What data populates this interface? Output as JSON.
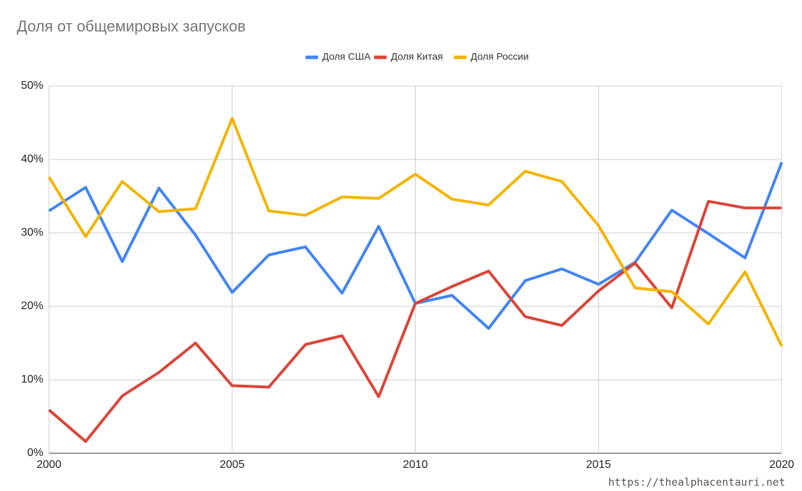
{
  "chart_data": {
    "type": "line",
    "title": "Доля от общемировых запусков",
    "x": [
      2000,
      2001,
      2002,
      2003,
      2004,
      2005,
      2006,
      2007,
      2008,
      2009,
      2010,
      2011,
      2012,
      2013,
      2014,
      2015,
      2016,
      2017,
      2018,
      2019,
      2020
    ],
    "series": [
      {
        "name": "Доля США",
        "color": "#4285f4",
        "values": [
          33.0,
          36.2,
          26.1,
          36.1,
          29.7,
          21.9,
          27.0,
          28.1,
          21.8,
          30.9,
          20.4,
          21.5,
          17.0,
          23.5,
          25.1,
          23.0,
          26.0,
          33.1,
          29.9,
          26.6,
          39.6
        ]
      },
      {
        "name": "Доля Китая",
        "color": "#db4437",
        "values": [
          5.9,
          1.6,
          7.8,
          11.0,
          15.0,
          9.2,
          9.0,
          14.8,
          16.0,
          7.7,
          20.4,
          22.7,
          24.8,
          18.6,
          17.4,
          22.1,
          25.9,
          19.8,
          34.3,
          33.4,
          33.4
        ]
      },
      {
        "name": "Доля России",
        "color": "#f4b400",
        "values": [
          37.6,
          29.5,
          37.0,
          32.9,
          33.3,
          45.6,
          33.0,
          32.4,
          34.9,
          34.7,
          38.0,
          34.6,
          33.8,
          38.4,
          37.0,
          31.0,
          22.5,
          22.0,
          17.6,
          24.7,
          14.6
        ]
      }
    ],
    "xlim": [
      2000,
      2020
    ],
    "xticks": [
      2000,
      2005,
      2010,
      2015,
      2020
    ],
    "ylim": [
      0,
      50
    ],
    "yticks": [
      {
        "value": 0,
        "label": "0%"
      },
      {
        "value": 10,
        "label": "10%"
      },
      {
        "value": 20,
        "label": "20%"
      },
      {
        "value": 30,
        "label": "30%"
      },
      {
        "value": 40,
        "label": "40%"
      },
      {
        "value": 50,
        "label": "50%"
      }
    ],
    "grid": true,
    "legend": "top",
    "watermark": "https://thealphacentauri.net"
  }
}
